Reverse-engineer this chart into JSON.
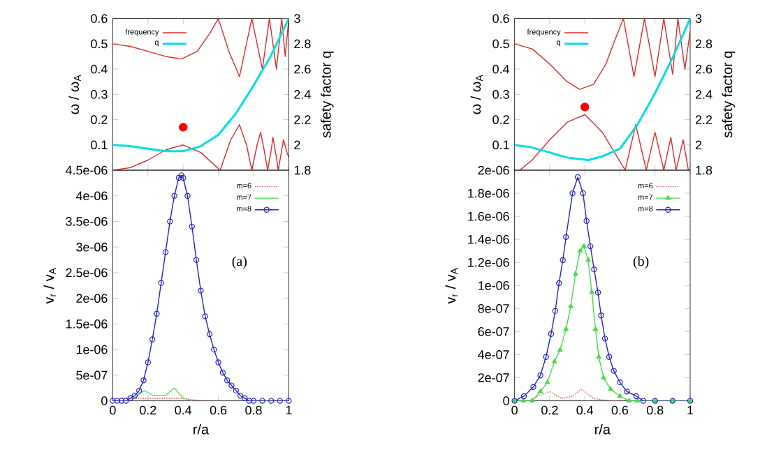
{
  "chart_data": [
    {
      "type": "line",
      "ylabel": "ω / ω$_{A}$",
      "y2label": "safety factor q",
      "xlim": [
        0,
        1
      ],
      "ylim": [
        0,
        0.6
      ],
      "y2lim": [
        1.8,
        3
      ],
      "xticks": [
        {
          "value": 0,
          "label": null
        },
        {
          "value": 0.2,
          "label": null
        },
        {
          "value": 0.4,
          "label": null
        },
        {
          "value": 0.6,
          "label": null
        },
        {
          "value": 0.8,
          "label": null
        },
        {
          "value": 1,
          "label": null
        }
      ],
      "yticks": [
        0.1,
        0.2,
        0.3,
        0.4,
        0.5,
        0.6
      ],
      "y2ticks": [
        1.8,
        2,
        2.2,
        2.4,
        2.6,
        2.8,
        3
      ],
      "tick_labels": "y",
      "legend": "top left",
      "series": [
        {
          "name": "frequency",
          "color": "#e02828",
          "x": [
            0,
            0.1,
            0.2,
            0.3,
            0.39,
            0.48,
            0.55,
            0.6,
            0.66,
            0.72,
            0.79,
            0.85,
            0.89,
            0.93,
            0.96,
            0.98,
            1.0
          ],
          "values": [
            0.5,
            0.49,
            0.47,
            0.45,
            0.44,
            0.47,
            0.54,
            0.6,
            0.47,
            0.37,
            0.6,
            0.4,
            0.6,
            0.4,
            0.6,
            0.45,
            0.6
          ]
        },
        {
          "color": "#e02828",
          "x": [
            0,
            0.1,
            0.2,
            0.3,
            0.4,
            0.5,
            0.61,
            0.67,
            0.72,
            0.76,
            0.79,
            0.82,
            0.84,
            0.86,
            0.88,
            0.9,
            0.91,
            0.93,
            0.94,
            0.96,
            0.97,
            0.99,
            1.0
          ],
          "values": [
            0,
            0.01,
            0.04,
            0.08,
            0.1,
            0.07,
            0,
            0.12,
            0.18,
            0.1,
            0,
            0.1,
            0.15,
            0.08,
            0,
            0.08,
            0.13,
            0.05,
            0,
            0.08,
            0.12,
            0.07,
            0.05
          ]
        },
        {
          "name": "q",
          "color": "#00e0e0",
          "axis": "y2",
          "x": [
            0,
            0.1,
            0.2,
            0.3,
            0.4,
            0.5,
            0.6,
            0.7,
            0.8,
            0.9,
            1.0
          ],
          "values": [
            2.0,
            1.99,
            1.97,
            1.95,
            1.95,
            1.99,
            2.08,
            2.25,
            2.47,
            2.71,
            3.0
          ]
        },
        {
          "type": "scatter",
          "color": "#ff0000",
          "marker": "circle",
          "x": [
            0.4
          ],
          "values": [
            0.17
          ]
        }
      ]
    },
    {
      "type": "line",
      "ylabel": "ω / ω$_{A}$",
      "y2label": "safety factor q",
      "xlim": [
        0,
        1
      ],
      "ylim": [
        0,
        0.6
      ],
      "y2lim": [
        1.8,
        3
      ],
      "xticks": [
        {
          "value": 0,
          "label": null
        },
        {
          "value": 0.2,
          "label": null
        },
        {
          "value": 0.4,
          "label": null
        },
        {
          "value": 0.6,
          "label": null
        },
        {
          "value": 0.8,
          "label": null
        },
        {
          "value": 1,
          "label": null
        }
      ],
      "yticks": [
        0.1,
        0.2,
        0.3,
        0.4,
        0.5,
        0.6
      ],
      "y2ticks": [
        1.8,
        2,
        2.2,
        2.4,
        2.6,
        2.8,
        3
      ],
      "tick_labels": "y",
      "legend": "top left",
      "series": [
        {
          "name": "frequency",
          "color": "#e02828",
          "x": [
            0,
            0.1,
            0.2,
            0.3,
            0.37,
            0.45,
            0.52,
            0.58,
            0.62,
            0.68,
            0.74,
            0.8,
            0.85,
            0.9,
            0.93,
            0.97,
            1.0
          ],
          "values": [
            0.5,
            0.48,
            0.42,
            0.35,
            0.32,
            0.34,
            0.42,
            0.53,
            0.6,
            0.37,
            0.6,
            0.37,
            0.6,
            0.38,
            0.6,
            0.4,
            0.55
          ]
        },
        {
          "color": "#e02828",
          "x": [
            0.03,
            0.1,
            0.2,
            0.3,
            0.4,
            0.5,
            0.63,
            0.69,
            0.75,
            0.8,
            0.85,
            0.89,
            0.92,
            0.96,
            0.99
          ],
          "values": [
            0,
            0.04,
            0.12,
            0.19,
            0.22,
            0.15,
            0,
            0.18,
            0,
            0.15,
            0,
            0.13,
            0,
            0.12,
            0
          ]
        },
        {
          "name": "q",
          "color": "#00e0e0",
          "axis": "y2",
          "x": [
            0,
            0.1,
            0.2,
            0.3,
            0.42,
            0.5,
            0.6,
            0.7,
            0.8,
            0.9,
            1.0
          ],
          "values": [
            2.0,
            1.98,
            1.94,
            1.9,
            1.88,
            1.91,
            1.97,
            2.16,
            2.41,
            2.69,
            3.0
          ]
        },
        {
          "type": "scatter",
          "color": "#ff0000",
          "marker": "circle",
          "x": [
            0.4
          ],
          "values": [
            0.25
          ]
        }
      ]
    },
    {
      "type": "line",
      "xlabel": "r/a",
      "ylabel": "v$_{r}$ / v$_{A}$",
      "xlim": [
        0,
        1
      ],
      "ylim": [
        0,
        4.5e-06
      ],
      "xticks": [
        0,
        0.2,
        0.4,
        0.6,
        0.8,
        1
      ],
      "yticks": [
        0,
        {
          "value": 5e-07,
          "label": "5e-07"
        },
        {
          "value": 1e-06,
          "label": "1e-06"
        },
        {
          "value": 1.5e-06,
          "label": "1.5e-06"
        },
        {
          "value": 2e-06,
          "label": "2e-06"
        },
        {
          "value": 2.5e-06,
          "label": "2.5e-06"
        },
        {
          "value": 3e-06,
          "label": "3e-06"
        },
        {
          "value": 3.5e-06,
          "label": "3.5e-06"
        },
        {
          "value": 4e-06,
          "label": "4e-06"
        },
        {
          "value": 4.5e-06,
          "label": "4.5e-06"
        }
      ],
      "legend": "top right",
      "annotations": [
        "(a)"
      ],
      "series": [
        {
          "name": "m=6",
          "color": "#ff4040",
          "line_style": "dotted",
          "x": [
            0.05,
            0.1,
            0.2,
            0.3,
            0.4,
            0.5
          ],
          "values": [
            5e-08,
            5e-08,
            5e-08,
            5e-08,
            5e-08,
            0
          ]
        },
        {
          "name": "m=7",
          "color": "#66e066",
          "x": [
            0.05,
            0.1,
            0.18,
            0.23,
            0.3,
            0.35,
            0.4,
            0.45
          ],
          "values": [
            0,
            0,
            2e-07,
            1e-07,
            1e-07,
            2.5e-07,
            5e-08,
            0
          ]
        },
        {
          "name": "m=8",
          "color": "#2222cc",
          "marker": "circle",
          "x": [
            0,
            0.025,
            0.05,
            0.075,
            0.1,
            0.125,
            0.15,
            0.175,
            0.2,
            0.225,
            0.25,
            0.275,
            0.3,
            0.325,
            0.35,
            0.375,
            0.39,
            0.4,
            0.425,
            0.45,
            0.475,
            0.5,
            0.525,
            0.55,
            0.575,
            0.6,
            0.625,
            0.65,
            0.675,
            0.7,
            0.725,
            0.75,
            0.775,
            0.8,
            0.85,
            0.9,
            0.95,
            1.0
          ],
          "values": [
            0,
            0,
            0,
            0,
            5e-08,
            1e-07,
            2e-07,
            4e-07,
            7.5e-07,
            1.2e-06,
            1.7e-06,
            2.3e-06,
            2.9e-06,
            3.5e-06,
            4e-06,
            4.35e-06,
            4.4e-06,
            4.35e-06,
            4e-06,
            3.4e-06,
            2.75e-06,
            2.15e-06,
            1.65e-06,
            1.3e-06,
            1e-06,
            7.5e-07,
            5.5e-07,
            4e-07,
            3e-07,
            2e-07,
            1e-07,
            5e-08,
            0,
            0,
            0,
            0,
            0,
            0
          ]
        }
      ]
    },
    {
      "type": "line",
      "xlabel": "r/a",
      "ylabel": "v$_{r}$ / v$_{A}$",
      "xlim": [
        0,
        1
      ],
      "ylim": [
        0,
        2e-06
      ],
      "xticks": [
        0,
        0.2,
        0.4,
        0.6,
        0.8,
        1
      ],
      "yticks": [
        0,
        {
          "value": 2e-07,
          "label": "2e-07"
        },
        {
          "value": 4e-07,
          "label": "4e-07"
        },
        {
          "value": 6e-07,
          "label": "6e-07"
        },
        {
          "value": 8e-07,
          "label": "8e-07"
        },
        {
          "value": 1e-06,
          "label": "1e-06"
        },
        {
          "value": 1.2e-06,
          "label": "1.2e-06"
        },
        {
          "value": 1.4e-06,
          "label": "1.4e-06"
        },
        {
          "value": 1.6e-06,
          "label": "1.6e-06"
        },
        {
          "value": 1.8e-06,
          "label": "1.8e-06"
        },
        {
          "value": 2e-06,
          "label": "2e-06"
        }
      ],
      "legend": "top right",
      "annotations": [
        "(b)"
      ],
      "series": [
        {
          "name": "m=6",
          "color": "#ff4040",
          "line_style": "dotted",
          "x": [
            0.1,
            0.2,
            0.27,
            0.33,
            0.38,
            0.45,
            0.55,
            0.6
          ],
          "values": [
            2e-08,
            8e-08,
            2e-08,
            4e-08,
            1e-07,
            2e-08,
            0,
            0
          ]
        },
        {
          "name": "m=7",
          "color": "#44dd44",
          "marker": "triangle",
          "x": [
            0,
            0.05,
            0.1,
            0.147,
            0.187,
            0.227,
            0.259,
            0.293,
            0.32,
            0.347,
            0.373,
            0.395,
            0.419,
            0.44,
            0.461,
            0.48,
            0.507,
            0.547,
            0.6,
            0.653,
            0.7,
            0.8,
            0.9,
            1.0
          ],
          "values": [
            0,
            0,
            0,
            8e-08,
            1.6e-07,
            3.4e-07,
            4.4e-07,
            6.2e-07,
            8.2e-07,
            1.1e-06,
            1.3e-06,
            1.34e-06,
            1.22e-06,
            9.4e-07,
            6.2e-07,
            3.8e-07,
            2e-07,
            1e-07,
            4e-08,
            0,
            0,
            0,
            0,
            0
          ]
        },
        {
          "name": "m=8",
          "color": "#2222cc",
          "marker": "circle",
          "x": [
            0,
            0.053,
            0.107,
            0.147,
            0.179,
            0.208,
            0.232,
            0.253,
            0.275,
            0.293,
            0.33,
            0.36,
            0.39,
            0.41,
            0.432,
            0.453,
            0.475,
            0.493,
            0.515,
            0.539,
            0.565,
            0.6,
            0.64,
            0.693,
            0.733,
            0.8,
            0.9,
            1.0
          ],
          "values": [
            0,
            4e-08,
            1.2e-07,
            2.2e-07,
            3.8e-07,
            5.8e-07,
            7.8e-07,
            1.02e-06,
            1.22e-06,
            1.42e-06,
            1.8e-06,
            1.94e-06,
            1.8e-06,
            1.56e-06,
            1.34e-06,
            1.14e-06,
            9.4e-07,
            7.4e-07,
            5.4e-07,
            3.8e-07,
            2.6e-07,
            1.6e-07,
            8e-08,
            4e-08,
            0,
            0,
            0,
            0
          ]
        }
      ]
    }
  ]
}
